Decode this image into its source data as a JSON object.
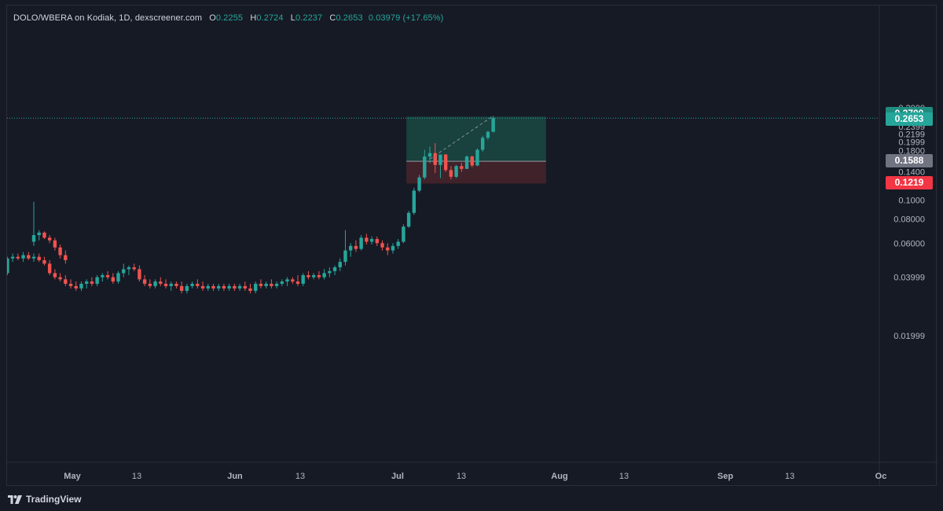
{
  "legend": {
    "title": "DOLO/WBERA on Kodiak, 1D, dexscreener.com",
    "open_label": "O",
    "open": "0.2255",
    "high_label": "H",
    "high": "0.2724",
    "low_label": "L",
    "low": "0.2237",
    "close_label": "C",
    "close": "0.2653",
    "change": "0.03979 (+17.65%)"
  },
  "badges": {
    "target": "0.2700",
    "last": "0.2653",
    "entry": "0.1588",
    "stop": "0.1219"
  },
  "footer": {
    "brand": "TradingView",
    "logo_icon": "tradingview-logo-icon"
  },
  "colors": {
    "up": "#26a69a",
    "down": "#ef5350",
    "background": "#161a25",
    "profit_zone": "#1b4d45",
    "loss_zone": "#48252c"
  },
  "chart_data": {
    "type": "candlestick",
    "title": "DOLO/WBERA on Kodiak, 1D, dexscreener.com",
    "y_scale": "log",
    "ylim": [
      0.015,
      0.31
    ],
    "y_ticks": [
      "0.3000",
      "0.2799",
      "0.2599",
      "0.2399",
      "0.2199",
      "0.1999",
      "0.1800",
      "0.1588",
      "0.1400",
      "0.1219",
      "0.1000",
      "0.08000",
      "0.06000",
      "0.03999",
      "0.01999"
    ],
    "x_ticks": [
      "May",
      "13",
      "Jun",
      "13",
      "Jul",
      "13",
      "Aug",
      "13",
      "Sep",
      "13",
      "Oc"
    ],
    "grid": false,
    "long_position": {
      "entry": 0.1588,
      "target": 0.27,
      "stop": 0.1219,
      "start": "Jul 27",
      "end": "Aug 22"
    },
    "candles": [
      {
        "date": "Apr 24",
        "o": 0.061,
        "h": 0.098,
        "l": 0.058,
        "c": 0.066
      },
      {
        "date": "Apr 25",
        "o": 0.066,
        "h": 0.07,
        "l": 0.062,
        "c": 0.068
      },
      {
        "date": "Apr 26",
        "o": 0.068,
        "h": 0.069,
        "l": 0.063,
        "c": 0.064
      },
      {
        "date": "Apr 27",
        "o": 0.064,
        "h": 0.066,
        "l": 0.06,
        "c": 0.062
      },
      {
        "date": "Apr 28",
        "o": 0.062,
        "h": 0.064,
        "l": 0.055,
        "c": 0.057
      },
      {
        "date": "Apr 29",
        "o": 0.057,
        "h": 0.059,
        "l": 0.05,
        "c": 0.052
      },
      {
        "date": "Apr 30",
        "o": 0.052,
        "h": 0.055,
        "l": 0.047,
        "c": 0.049
      },
      {
        "date": "May 1",
        "o": 0.049,
        "h": 0.053,
        "l": 0.045,
        "c": 0.05
      },
      {
        "date": "May 2",
        "o": 0.05,
        "h": 0.057,
        "l": 0.048,
        "c": 0.055
      },
      {
        "date": "May 3",
        "o": 0.055,
        "h": 0.064,
        "l": 0.052,
        "c": 0.06
      },
      {
        "date": "May 4",
        "o": 0.06,
        "h": 0.068,
        "l": 0.057,
        "c": 0.066
      },
      {
        "date": "May 5",
        "o": 0.066,
        "h": 0.068,
        "l": 0.051,
        "c": 0.053
      },
      {
        "date": "May 6",
        "o": 0.053,
        "h": 0.056,
        "l": 0.048,
        "c": 0.05
      },
      {
        "date": "May 7",
        "o": 0.05,
        "h": 0.052,
        "l": 0.046,
        "c": 0.048
      },
      {
        "date": "May 8",
        "o": 0.048,
        "h": 0.05,
        "l": 0.044,
        "c": 0.046
      },
      {
        "date": "May 9",
        "o": 0.046,
        "h": 0.048,
        "l": 0.043,
        "c": 0.044
      },
      {
        "date": "May 10",
        "o": 0.044,
        "h": 0.047,
        "l": 0.042,
        "c": 0.045
      },
      {
        "date": "May 11",
        "o": 0.045,
        "h": 0.047,
        "l": 0.041,
        "c": 0.042
      },
      {
        "date": "May 12",
        "o": 0.042,
        "h": 0.051,
        "l": 0.041,
        "c": 0.05
      },
      {
        "date": "May 13",
        "o": 0.05,
        "h": 0.053,
        "l": 0.048,
        "c": 0.051
      },
      {
        "date": "May 14",
        "o": 0.051,
        "h": 0.053,
        "l": 0.049,
        "c": 0.05
      },
      {
        "date": "May 15",
        "o": 0.05,
        "h": 0.054,
        "l": 0.048,
        "c": 0.052
      },
      {
        "date": "May 16",
        "o": 0.052,
        "h": 0.054,
        "l": 0.049,
        "c": 0.05
      },
      {
        "date": "May 17",
        "o": 0.05,
        "h": 0.053,
        "l": 0.048,
        "c": 0.051
      },
      {
        "date": "May 18",
        "o": 0.051,
        "h": 0.053,
        "l": 0.048,
        "c": 0.049
      },
      {
        "date": "May 19",
        "o": 0.049,
        "h": 0.051,
        "l": 0.046,
        "c": 0.047
      },
      {
        "date": "May 20",
        "o": 0.047,
        "h": 0.049,
        "l": 0.041,
        "c": 0.042
      },
      {
        "date": "May 21",
        "o": 0.042,
        "h": 0.044,
        "l": 0.039,
        "c": 0.04
      },
      {
        "date": "May 22",
        "o": 0.04,
        "h": 0.042,
        "l": 0.038,
        "c": 0.039
      },
      {
        "date": "May 23",
        "o": 0.039,
        "h": 0.041,
        "l": 0.036,
        "c": 0.037
      },
      {
        "date": "May 24",
        "o": 0.037,
        "h": 0.039,
        "l": 0.035,
        "c": 0.036
      },
      {
        "date": "May 25",
        "o": 0.036,
        "h": 0.038,
        "l": 0.034,
        "c": 0.035
      },
      {
        "date": "May 26",
        "o": 0.035,
        "h": 0.038,
        "l": 0.034,
        "c": 0.037
      },
      {
        "date": "May 27",
        "o": 0.037,
        "h": 0.039,
        "l": 0.035,
        "c": 0.038
      },
      {
        "date": "May 28",
        "o": 0.038,
        "h": 0.04,
        "l": 0.036,
        "c": 0.037
      },
      {
        "date": "May 29",
        "o": 0.037,
        "h": 0.041,
        "l": 0.036,
        "c": 0.04
      },
      {
        "date": "May 30",
        "o": 0.04,
        "h": 0.042,
        "l": 0.038,
        "c": 0.041
      },
      {
        "date": "May 31",
        "o": 0.041,
        "h": 0.043,
        "l": 0.039,
        "c": 0.04
      },
      {
        "date": "Jun 1",
        "o": 0.04,
        "h": 0.042,
        "l": 0.037,
        "c": 0.038
      },
      {
        "date": "Jun 2",
        "o": 0.038,
        "h": 0.043,
        "l": 0.037,
        "c": 0.042
      },
      {
        "date": "Jun 3",
        "o": 0.042,
        "h": 0.047,
        "l": 0.04,
        "c": 0.044
      },
      {
        "date": "Jun 4",
        "o": 0.044,
        "h": 0.046,
        "l": 0.041,
        "c": 0.045
      },
      {
        "date": "Jun 5",
        "o": 0.045,
        "h": 0.047,
        "l": 0.043,
        "c": 0.044
      },
      {
        "date": "Jun 6",
        "o": 0.044,
        "h": 0.046,
        "l": 0.038,
        "c": 0.039
      },
      {
        "date": "Jun 7",
        "o": 0.039,
        "h": 0.041,
        "l": 0.036,
        "c": 0.037
      },
      {
        "date": "Jun 8",
        "o": 0.037,
        "h": 0.039,
        "l": 0.035,
        "c": 0.036
      },
      {
        "date": "Jun 9",
        "o": 0.036,
        "h": 0.039,
        "l": 0.035,
        "c": 0.038
      },
      {
        "date": "Jun 10",
        "o": 0.038,
        "h": 0.04,
        "l": 0.036,
        "c": 0.037
      },
      {
        "date": "Jun 11",
        "o": 0.037,
        "h": 0.039,
        "l": 0.035,
        "c": 0.036
      },
      {
        "date": "Jun 12",
        "o": 0.036,
        "h": 0.038,
        "l": 0.034,
        "c": 0.037
      },
      {
        "date": "Jun 13",
        "o": 0.037,
        "h": 0.038,
        "l": 0.035,
        "c": 0.036
      },
      {
        "date": "Jun 14",
        "o": 0.036,
        "h": 0.038,
        "l": 0.033,
        "c": 0.034
      },
      {
        "date": "Jun 15",
        "o": 0.034,
        "h": 0.037,
        "l": 0.033,
        "c": 0.036
      },
      {
        "date": "Jun 16",
        "o": 0.036,
        "h": 0.038,
        "l": 0.035,
        "c": 0.037
      },
      {
        "date": "Jun 17",
        "o": 0.037,
        "h": 0.039,
        "l": 0.035,
        "c": 0.036
      },
      {
        "date": "Jun 18",
        "o": 0.036,
        "h": 0.038,
        "l": 0.034,
        "c": 0.035
      },
      {
        "date": "Jun 19",
        "o": 0.035,
        "h": 0.037,
        "l": 0.034,
        "c": 0.036
      },
      {
        "date": "Jun 20",
        "o": 0.036,
        "h": 0.037,
        "l": 0.034,
        "c": 0.035
      },
      {
        "date": "Jun 21",
        "o": 0.035,
        "h": 0.037,
        "l": 0.034,
        "c": 0.036
      },
      {
        "date": "Jun 22",
        "o": 0.036,
        "h": 0.037,
        "l": 0.034,
        "c": 0.035
      },
      {
        "date": "Jun 23",
        "o": 0.035,
        "h": 0.037,
        "l": 0.034,
        "c": 0.036
      },
      {
        "date": "Jun 24",
        "o": 0.036,
        "h": 0.037,
        "l": 0.034,
        "c": 0.035
      },
      {
        "date": "Jun 25",
        "o": 0.035,
        "h": 0.037,
        "l": 0.034,
        "c": 0.036
      },
      {
        "date": "Jun 26",
        "o": 0.036,
        "h": 0.038,
        "l": 0.034,
        "c": 0.035
      },
      {
        "date": "Jun 27",
        "o": 0.035,
        "h": 0.037,
        "l": 0.033,
        "c": 0.034
      },
      {
        "date": "Jun 28",
        "o": 0.034,
        "h": 0.038,
        "l": 0.033,
        "c": 0.037
      },
      {
        "date": "Jun 29",
        "o": 0.037,
        "h": 0.039,
        "l": 0.035,
        "c": 0.036
      },
      {
        "date": "Jun 30",
        "o": 0.036,
        "h": 0.038,
        "l": 0.035,
        "c": 0.037
      },
      {
        "date": "Jul 1",
        "o": 0.037,
        "h": 0.039,
        "l": 0.035,
        "c": 0.036
      },
      {
        "date": "Jul 2",
        "o": 0.036,
        "h": 0.038,
        "l": 0.035,
        "c": 0.037
      },
      {
        "date": "Jul 3",
        "o": 0.037,
        "h": 0.039,
        "l": 0.036,
        "c": 0.038
      },
      {
        "date": "Jul 4",
        "o": 0.038,
        "h": 0.04,
        "l": 0.036,
        "c": 0.039
      },
      {
        "date": "Jul 5",
        "o": 0.039,
        "h": 0.04,
        "l": 0.037,
        "c": 0.038
      },
      {
        "date": "Jul 6",
        "o": 0.038,
        "h": 0.041,
        "l": 0.036,
        "c": 0.037
      },
      {
        "date": "Jul 7",
        "o": 0.037,
        "h": 0.042,
        "l": 0.036,
        "c": 0.041
      },
      {
        "date": "Jul 8",
        "o": 0.041,
        "h": 0.043,
        "l": 0.039,
        "c": 0.04
      },
      {
        "date": "Jul 9",
        "o": 0.04,
        "h": 0.042,
        "l": 0.039,
        "c": 0.041
      },
      {
        "date": "Jul 10",
        "o": 0.041,
        "h": 0.043,
        "l": 0.039,
        "c": 0.04
      },
      {
        "date": "Jul 11",
        "o": 0.04,
        "h": 0.044,
        "l": 0.039,
        "c": 0.042
      },
      {
        "date": "Jul 12",
        "o": 0.042,
        "h": 0.045,
        "l": 0.04,
        "c": 0.043
      },
      {
        "date": "Jul 13",
        "o": 0.043,
        "h": 0.046,
        "l": 0.041,
        "c": 0.045
      },
      {
        "date": "Jul 14",
        "o": 0.045,
        "h": 0.05,
        "l": 0.043,
        "c": 0.048
      },
      {
        "date": "Jul 15",
        "o": 0.048,
        "h": 0.07,
        "l": 0.046,
        "c": 0.055
      },
      {
        "date": "Jul 16",
        "o": 0.055,
        "h": 0.06,
        "l": 0.051,
        "c": 0.058
      },
      {
        "date": "Jul 17",
        "o": 0.058,
        "h": 0.062,
        "l": 0.054,
        "c": 0.056
      },
      {
        "date": "Jul 18",
        "o": 0.056,
        "h": 0.066,
        "l": 0.055,
        "c": 0.064
      },
      {
        "date": "Jul 19",
        "o": 0.064,
        "h": 0.067,
        "l": 0.059,
        "c": 0.061
      },
      {
        "date": "Jul 20",
        "o": 0.061,
        "h": 0.065,
        "l": 0.059,
        "c": 0.063
      },
      {
        "date": "Jul 21",
        "o": 0.063,
        "h": 0.065,
        "l": 0.058,
        "c": 0.06
      },
      {
        "date": "Jul 22",
        "o": 0.06,
        "h": 0.062,
        "l": 0.055,
        "c": 0.057
      },
      {
        "date": "Jul 23",
        "o": 0.057,
        "h": 0.06,
        "l": 0.052,
        "c": 0.055
      },
      {
        "date": "Jul 24",
        "o": 0.055,
        "h": 0.06,
        "l": 0.053,
        "c": 0.058
      },
      {
        "date": "Jul 25",
        "o": 0.058,
        "h": 0.063,
        "l": 0.056,
        "c": 0.061
      },
      {
        "date": "Jul 26",
        "o": 0.061,
        "h": 0.075,
        "l": 0.06,
        "c": 0.073
      },
      {
        "date": "Jul 27",
        "o": 0.073,
        "h": 0.088,
        "l": 0.072,
        "c": 0.086
      },
      {
        "date": "Jul 28",
        "o": 0.086,
        "h": 0.116,
        "l": 0.084,
        "c": 0.112
      },
      {
        "date": "Jul 29",
        "o": 0.112,
        "h": 0.135,
        "l": 0.11,
        "c": 0.131
      },
      {
        "date": "Jul 30",
        "o": 0.131,
        "h": 0.182,
        "l": 0.128,
        "c": 0.168
      },
      {
        "date": "Jul 31",
        "o": 0.168,
        "h": 0.189,
        "l": 0.155,
        "c": 0.175
      },
      {
        "date": "Aug 1",
        "o": 0.175,
        "h": 0.197,
        "l": 0.138,
        "c": 0.152
      },
      {
        "date": "Aug 2",
        "o": 0.152,
        "h": 0.17,
        "l": 0.13,
        "c": 0.172
      },
      {
        "date": "Aug 3",
        "o": 0.172,
        "h": 0.173,
        "l": 0.14,
        "c": 0.143
      },
      {
        "date": "Aug 4",
        "o": 0.143,
        "h": 0.15,
        "l": 0.128,
        "c": 0.132
      },
      {
        "date": "Aug 5",
        "o": 0.132,
        "h": 0.152,
        "l": 0.13,
        "c": 0.15
      },
      {
        "date": "Aug 6",
        "o": 0.15,
        "h": 0.156,
        "l": 0.14,
        "c": 0.145
      },
      {
        "date": "Aug 7",
        "o": 0.145,
        "h": 0.17,
        "l": 0.145,
        "c": 0.168
      },
      {
        "date": "Aug 8",
        "o": 0.168,
        "h": 0.17,
        "l": 0.148,
        "c": 0.151
      },
      {
        "date": "Aug 9",
        "o": 0.151,
        "h": 0.185,
        "l": 0.15,
        "c": 0.182
      },
      {
        "date": "Aug 10",
        "o": 0.182,
        "h": 0.215,
        "l": 0.178,
        "c": 0.21
      },
      {
        "date": "Aug 11",
        "o": 0.21,
        "h": 0.228,
        "l": 0.205,
        "c": 0.2255
      },
      {
        "date": "Aug 12",
        "o": 0.2255,
        "h": 0.2724,
        "l": 0.2237,
        "c": 0.2653
      }
    ]
  }
}
